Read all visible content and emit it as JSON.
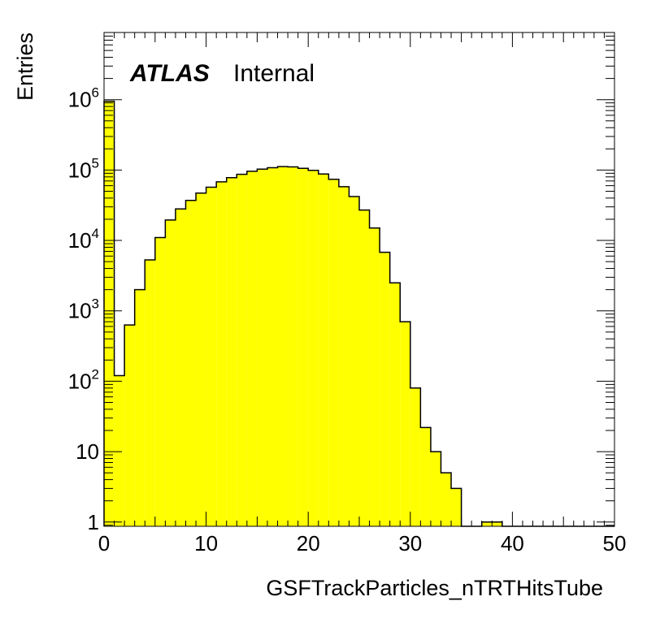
{
  "chart_data": {
    "type": "bar",
    "title": "",
    "experiment_label": "ATLAS",
    "status_label": "Internal",
    "xlabel": "GSFTrackParticles_nTRTHitsTube",
    "ylabel": "Entries",
    "xlim": [
      0,
      50
    ],
    "ylim": [
      0.87,
      9000000
    ],
    "y_scale": "log",
    "grid": false,
    "fill_color": "#ffff00",
    "line_color": "#000000",
    "bin_width": 1,
    "x_ticks": [
      {
        "value": 0,
        "label": "0"
      },
      {
        "value": 10,
        "label": "10"
      },
      {
        "value": 20,
        "label": "20"
      },
      {
        "value": 30,
        "label": "30"
      },
      {
        "value": 40,
        "label": "40"
      },
      {
        "value": 50,
        "label": "50"
      }
    ],
    "y_ticks": [
      {
        "value": 1,
        "base": "1",
        "exp": ""
      },
      {
        "value": 10,
        "base": "10",
        "exp": ""
      },
      {
        "value": 100,
        "base": "10",
        "exp": "2"
      },
      {
        "value": 1000,
        "base": "10",
        "exp": "3"
      },
      {
        "value": 10000,
        "base": "10",
        "exp": "4"
      },
      {
        "value": 100000,
        "base": "10",
        "exp": "5"
      },
      {
        "value": 1000000,
        "base": "10",
        "exp": "6"
      }
    ],
    "bin_edges_start": [
      0,
      1,
      2,
      3,
      4,
      5,
      6,
      7,
      8,
      9,
      10,
      11,
      12,
      13,
      14,
      15,
      16,
      17,
      18,
      19,
      20,
      21,
      22,
      23,
      24,
      25,
      26,
      27,
      28,
      29,
      30,
      31,
      32,
      33,
      34,
      35,
      36,
      37,
      38,
      39,
      40,
      41,
      42,
      43,
      44,
      45,
      46,
      47,
      48,
      49
    ],
    "values": [
      950000,
      120,
      630,
      2000,
      5300,
      11000,
      19500,
      28000,
      37000,
      47000,
      57000,
      68000,
      78000,
      87000,
      96000,
      103000,
      108000,
      112000,
      111000,
      106000,
      99000,
      88000,
      74000,
      58000,
      42000,
      27000,
      15000,
      6800,
      2500,
      700,
      80,
      22,
      10,
      5,
      3,
      0,
      0,
      1,
      1,
      0,
      0,
      0,
      0,
      0,
      0,
      0,
      0,
      0,
      0,
      0
    ]
  }
}
